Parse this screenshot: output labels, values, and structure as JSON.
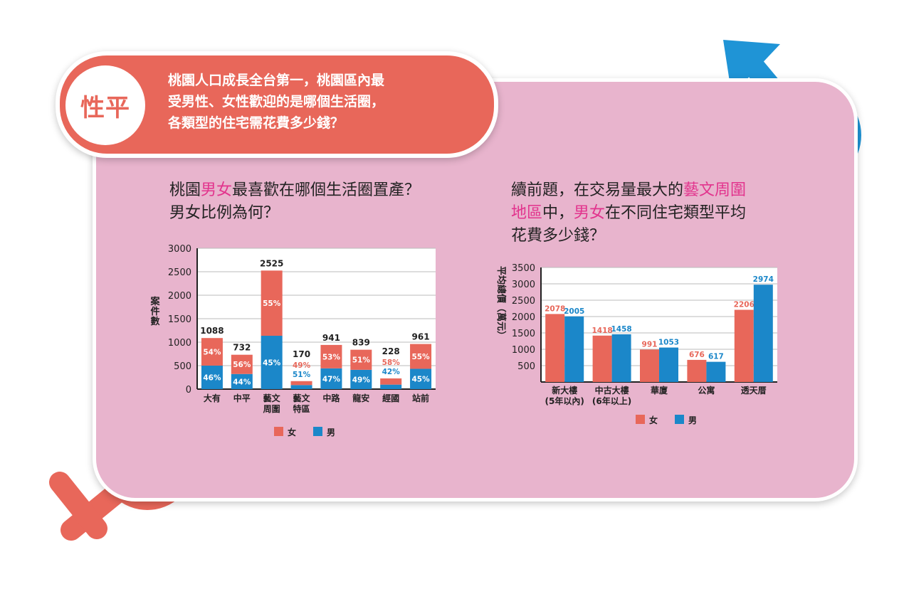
{
  "header": {
    "badge": "性平",
    "lines": [
      "桃園人口成長全台第一，桃園區內最",
      "受男性、女性歡迎的是哪個生活圈，",
      "各類型的住宅需花費多少錢？"
    ]
  },
  "question_left": {
    "l1_a": "桃園",
    "l1_hl": "男女",
    "l1_b": "最喜歡在哪個生活圈置產？",
    "l2": "男女比例為何？"
  },
  "question_right": {
    "l1_a": "續前題，在交易量最大的",
    "l1_hl": "藝文周圍",
    "l2_hl1": "地區",
    "l2_a": "中，",
    "l2_hl2": "男女",
    "l2_b": "在不同住宅類型平均",
    "l3": "花費多少錢？"
  },
  "colors": {
    "female": "#e8675a",
    "male": "#1b87c9",
    "highlight": "#e2338d",
    "panel": "#e8b4cd"
  },
  "icons": [
    "male-symbol-icon",
    "female-symbol-icon"
  ],
  "chart_data": [
    {
      "type": "bar",
      "stacked": true,
      "ylabel": "案件數",
      "ylim": [
        0,
        3000
      ],
      "yticks": [
        0,
        500,
        1000,
        1500,
        2000,
        2500,
        3000
      ],
      "categories": [
        [
          "大有"
        ],
        [
          "中平"
        ],
        [
          "藝文",
          "周圍"
        ],
        [
          "藝文",
          "特區"
        ],
        [
          "中路"
        ],
        [
          "龍安"
        ],
        [
          "經國"
        ],
        [
          "站前"
        ]
      ],
      "totals": [
        1088,
        732,
        2525,
        170,
        941,
        839,
        228,
        961
      ],
      "total_labels": [
        "1088",
        "732",
        "2525",
        "170",
        "941",
        "839",
        "228",
        "961"
      ],
      "female_pct": [
        "54%",
        "56%",
        "55%",
        "49%",
        "53%",
        "51%",
        "58%",
        "55%"
      ],
      "male_pct": [
        "46%",
        "44%",
        "45%",
        "51%",
        "47%",
        "49%",
        "42%",
        "45%"
      ],
      "female_share": [
        0.54,
        0.56,
        0.55,
        0.49,
        0.53,
        0.51,
        0.58,
        0.55
      ],
      "legend": [
        "女",
        "男"
      ],
      "legend_position": "bottom",
      "grid": true
    },
    {
      "type": "bar",
      "ylabel": "平均總價（萬元）",
      "ylim": [
        0,
        3500
      ],
      "yticks": [
        500,
        1000,
        1500,
        2000,
        2500,
        3000,
        3500
      ],
      "categories": [
        [
          "新大樓",
          "(5年以內)"
        ],
        [
          "中古大樓",
          "(6年以上)"
        ],
        [
          "華廈"
        ],
        [
          "公寓"
        ],
        [
          "透天厝"
        ]
      ],
      "series": [
        {
          "name": "女",
          "values": [
            2078,
            1418,
            991,
            676,
            2206
          ]
        },
        {
          "name": "男",
          "values": [
            2005,
            1458,
            1053,
            617,
            2974
          ]
        }
      ],
      "legend": [
        "女",
        "男"
      ],
      "legend_position": "bottom",
      "grid": true
    }
  ]
}
